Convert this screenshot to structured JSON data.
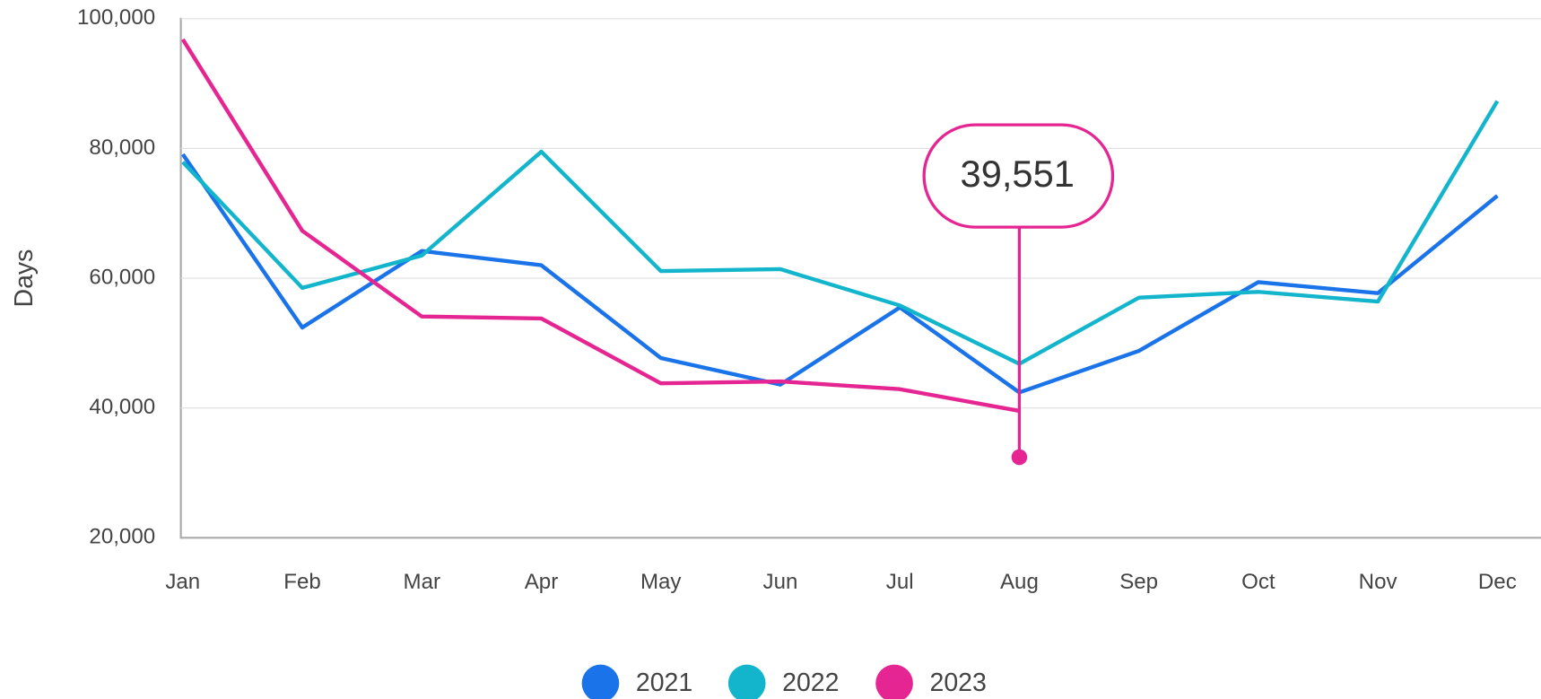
{
  "chart_data": {
    "type": "line",
    "ylabel": "Days",
    "categories": [
      "Jan",
      "Feb",
      "Mar",
      "Apr",
      "May",
      "Jun",
      "Jul",
      "Aug",
      "Sep",
      "Oct",
      "Nov",
      "Dec"
    ],
    "ylim": [
      20000,
      100000
    ],
    "yticks": [
      {
        "value": 20000,
        "label": "20,000"
      },
      {
        "value": 40000,
        "label": "40,000"
      },
      {
        "value": 60000,
        "label": "60,000"
      },
      {
        "value": 80000,
        "label": "80,000"
      },
      {
        "value": 100000,
        "label": "100,000"
      }
    ],
    "grid": true,
    "legend": "bottom",
    "series": [
      {
        "name": "2021",
        "color": "#1a73e8",
        "values": [
          79100,
          52400,
          64200,
          62000,
          47700,
          43600,
          55500,
          42400,
          48800,
          59400,
          57700,
          72700
        ]
      },
      {
        "name": "2022",
        "color": "#12b5cb",
        "values": [
          77900,
          58500,
          63500,
          79500,
          61100,
          61400,
          55800,
          46800,
          57000,
          57900,
          56400,
          87300
        ]
      },
      {
        "name": "2023",
        "color": "#e52592",
        "values": [
          96800,
          67300,
          54100,
          53800,
          43800,
          44100,
          42900,
          39551,
          null,
          null,
          null,
          null
        ],
        "value_labels": [
          null,
          null,
          null,
          null,
          null,
          null,
          null,
          "39,551",
          null,
          null,
          null,
          null
        ]
      }
    ]
  }
}
